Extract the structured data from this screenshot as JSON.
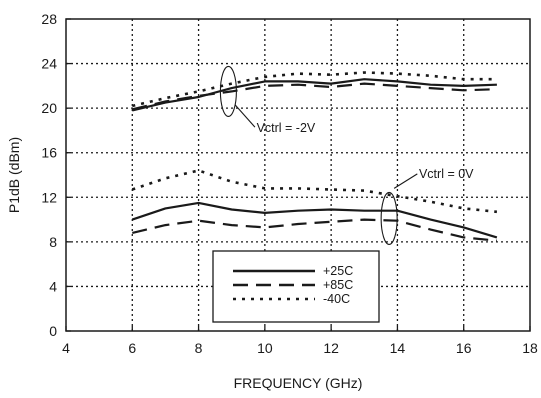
{
  "chart_data": {
    "type": "line",
    "xlabel": "FREQUENCY (GHz)",
    "ylabel": "P1dB (dBm)",
    "xlim": [
      4,
      18
    ],
    "ylim": [
      0,
      28
    ],
    "xticks": [
      4,
      6,
      8,
      10,
      12,
      14,
      16,
      18
    ],
    "yticks": [
      0,
      4,
      8,
      12,
      16,
      20,
      24,
      28
    ],
    "grid": true,
    "legend_position": "bottom-center",
    "annotations": [
      {
        "text": "Vctrl = -2V",
        "target": "upper curves near 9 GHz"
      },
      {
        "text": "Vctrl = 0V",
        "target": "lower curves near 14 GHz"
      }
    ],
    "series": [
      {
        "name": "+25C",
        "group": "Vctrl = -2V",
        "dash": "solid",
        "x": [
          6,
          7,
          8,
          9,
          10,
          11,
          12,
          13,
          14,
          15,
          16,
          17
        ],
        "y": [
          19.8,
          20.5,
          21.0,
          21.8,
          22.4,
          22.4,
          22.2,
          22.6,
          22.4,
          22.1,
          22.0,
          22.1
        ]
      },
      {
        "name": "+85C",
        "group": "Vctrl = -2V",
        "dash": "long-dash",
        "x": [
          6,
          7,
          8,
          9,
          10,
          11,
          12,
          13,
          14,
          15,
          16,
          17
        ],
        "y": [
          19.9,
          20.6,
          21.1,
          21.5,
          22.0,
          22.1,
          21.9,
          22.2,
          22.0,
          21.8,
          21.6,
          21.7
        ]
      },
      {
        "name": "-40C",
        "group": "Vctrl = -2V",
        "dash": "dotted",
        "x": [
          6,
          7,
          8,
          9,
          10,
          11,
          12,
          13,
          14,
          15,
          16,
          17
        ],
        "y": [
          20.2,
          20.9,
          21.5,
          22.2,
          22.8,
          23.1,
          23.0,
          23.2,
          23.1,
          22.9,
          22.6,
          22.6
        ]
      },
      {
        "name": "+25C",
        "group": "Vctrl = 0V",
        "dash": "solid",
        "x": [
          6,
          7,
          8,
          9,
          10,
          11,
          12,
          13,
          14,
          15,
          16,
          17
        ],
        "y": [
          10.0,
          11.0,
          11.5,
          10.9,
          10.6,
          10.8,
          10.9,
          10.8,
          10.8,
          10.0,
          9.3,
          8.4
        ]
      },
      {
        "name": "+85C",
        "group": "Vctrl = 0V",
        "dash": "long-dash",
        "x": [
          6,
          7,
          8,
          9,
          10,
          11,
          12,
          13,
          14,
          15,
          16,
          17
        ],
        "y": [
          8.8,
          9.5,
          9.9,
          9.5,
          9.3,
          9.6,
          9.8,
          10.0,
          9.9,
          9.1,
          8.4,
          8.1
        ]
      },
      {
        "name": "-40C",
        "group": "Vctrl = 0V",
        "dash": "dotted",
        "x": [
          6,
          7,
          8,
          9,
          10,
          11,
          12,
          13,
          14,
          15,
          16,
          17
        ],
        "y": [
          12.7,
          13.7,
          14.4,
          13.4,
          12.8,
          12.8,
          12.7,
          12.6,
          12.1,
          11.6,
          11.0,
          10.7
        ]
      }
    ],
    "legend": [
      {
        "label": "+25C",
        "dash": "solid"
      },
      {
        "label": "+85C",
        "dash": "long-dash"
      },
      {
        "label": "-40C",
        "dash": "dotted"
      }
    ]
  }
}
